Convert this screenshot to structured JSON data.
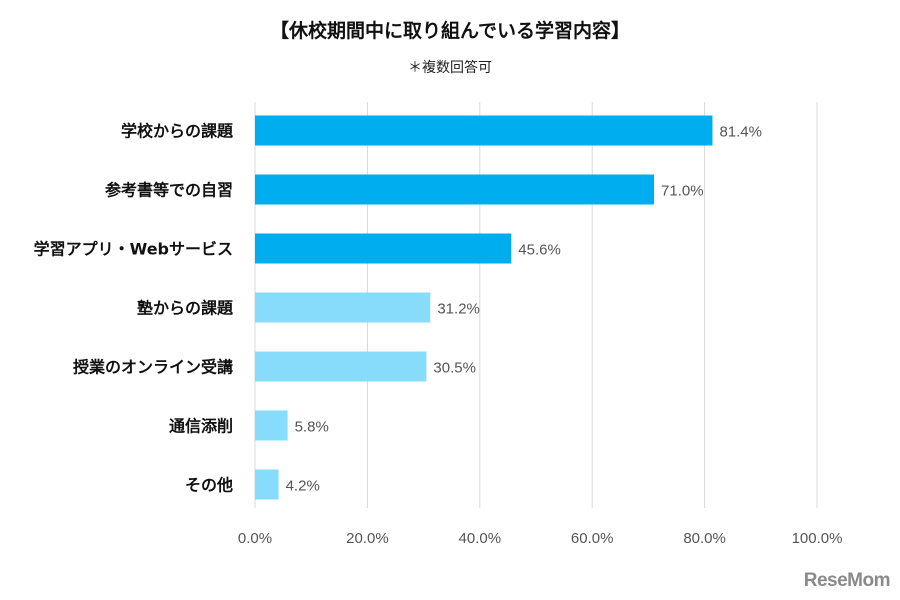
{
  "chart_data": {
    "type": "bar",
    "orientation": "horizontal",
    "title": "【休校期間中に取り組んでいる学習内容】",
    "subtitle": "＊複数回答可",
    "categories": [
      "学校からの課題",
      "参考書等での自習",
      "学習アプリ・Webサービス",
      "塾からの課題",
      "授業のオンライン受講",
      "通信添削",
      "その他"
    ],
    "values": [
      81.4,
      71.0,
      45.6,
      31.2,
      30.5,
      5.8,
      4.2
    ],
    "value_labels": [
      "81.4%",
      "71.0%",
      "45.6%",
      "31.2%",
      "30.5%",
      "5.8%",
      "4.2%"
    ],
    "bar_colors": [
      "#00aeef",
      "#00aeef",
      "#00aeef",
      "#87dcfb",
      "#87dcfb",
      "#87dcfb",
      "#87dcfb"
    ],
    "xlim": [
      0,
      100
    ],
    "x_ticks": [
      0,
      20,
      40,
      60,
      80,
      100
    ],
    "x_tick_labels": [
      "0.0%",
      "20.0%",
      "40.0%",
      "60.0%",
      "80.0%",
      "100.0%"
    ],
    "grid": "vertical",
    "gridline_color": "#d9d9d9"
  },
  "logo_text": "ReseMom"
}
